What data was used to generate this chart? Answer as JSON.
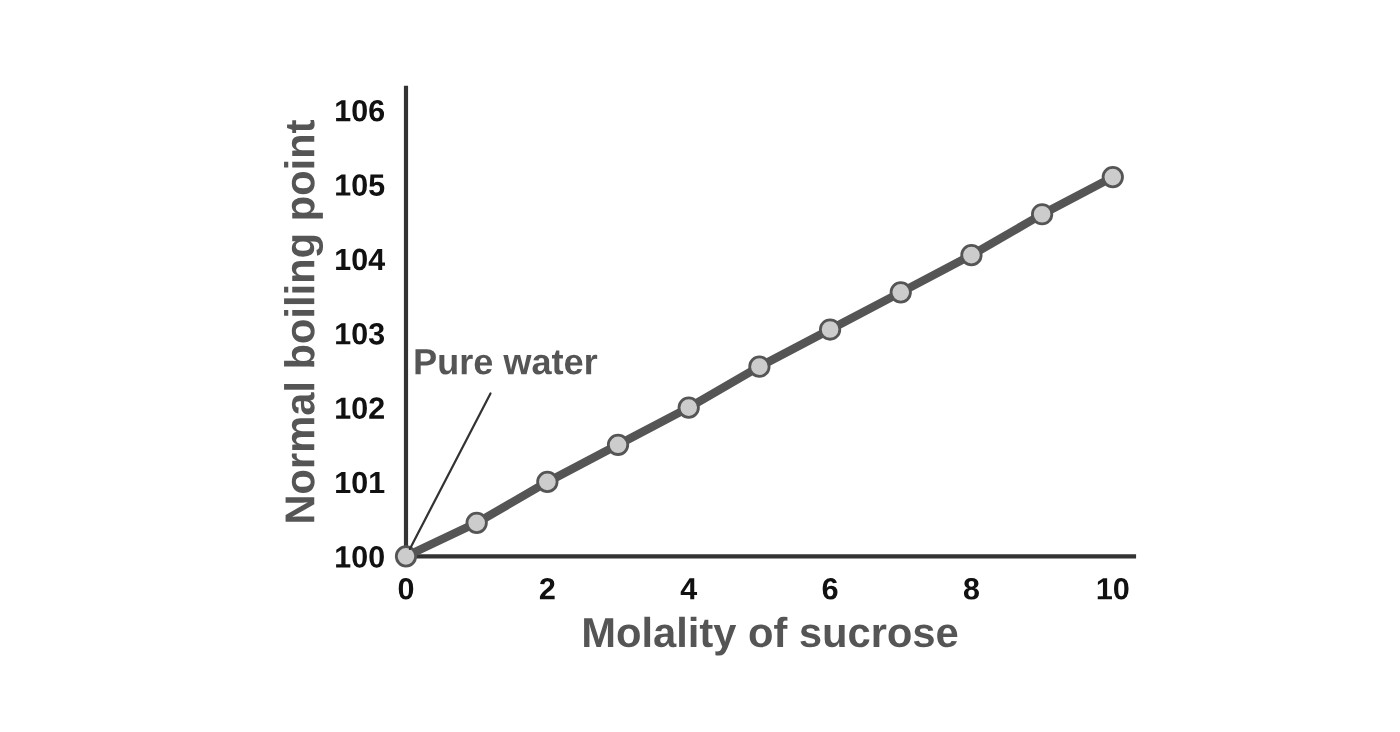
{
  "chart_data": {
    "type": "line",
    "xlabel": "Molality of sucrose",
    "ylabel": "Normal boiling point",
    "x": [
      0,
      1,
      2,
      3,
      4,
      5,
      6,
      7,
      8,
      9,
      10
    ],
    "series": [
      {
        "color": "#555555",
        "values": [
          100,
          100.45,
          101.0,
          101.5,
          102.0,
          102.55,
          103.05,
          103.55,
          104.05,
          104.6,
          105.1
        ]
      }
    ],
    "marker": "circle",
    "line_style": "solid",
    "xlim": [
      0,
      10.3
    ],
    "ylim": [
      100,
      106.3
    ],
    "xticks": [
      0,
      2,
      4,
      6,
      8,
      10
    ],
    "yticks": [
      100,
      101,
      102,
      103,
      104,
      105,
      106
    ],
    "annotations": [
      {
        "text": "Pure water",
        "x": 0,
        "y": 100
      }
    ],
    "grid": false,
    "legend": false
  }
}
